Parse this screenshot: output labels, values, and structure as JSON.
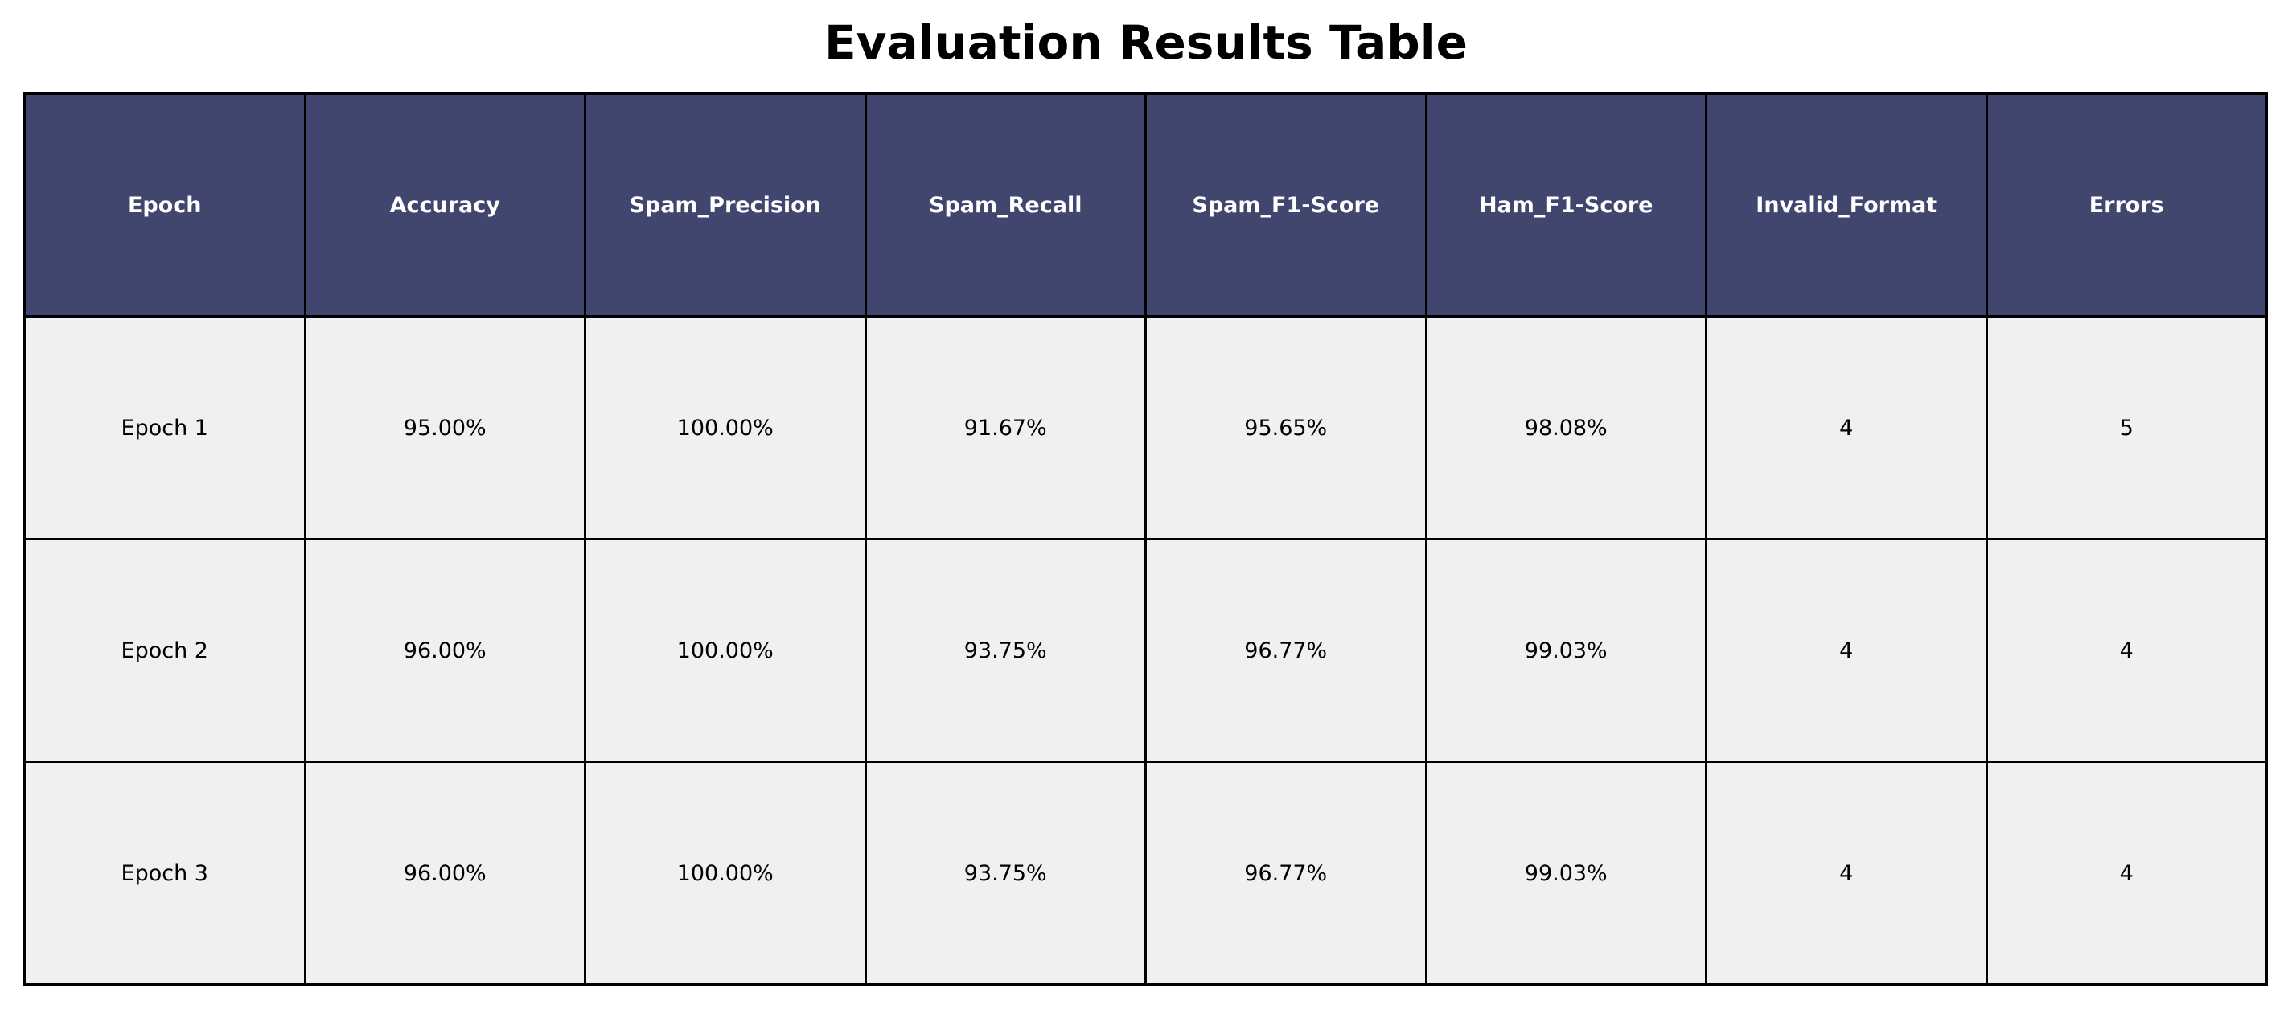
{
  "chart_data": {
    "type": "table",
    "title": "Evaluation Results Table",
    "columns": [
      "Epoch",
      "Accuracy",
      "Spam_Precision",
      "Spam_Recall",
      "Spam_F1-Score",
      "Ham_F1-Score",
      "Invalid_Format",
      "Errors"
    ],
    "rows": [
      [
        "Epoch 1",
        "95.00%",
        "100.00%",
        "91.67%",
        "95.65%",
        "98.08%",
        "4",
        "5"
      ],
      [
        "Epoch 2",
        "96.00%",
        "100.00%",
        "93.75%",
        "96.77%",
        "99.03%",
        "4",
        "4"
      ],
      [
        "Epoch 3",
        "96.00%",
        "100.00%",
        "93.75%",
        "96.77%",
        "99.03%",
        "4",
        "4"
      ]
    ],
    "header_color": "#40466e",
    "header_text_color": "#ffffff",
    "cell_color": "#f0f0f0",
    "border_color": "#000000"
  }
}
